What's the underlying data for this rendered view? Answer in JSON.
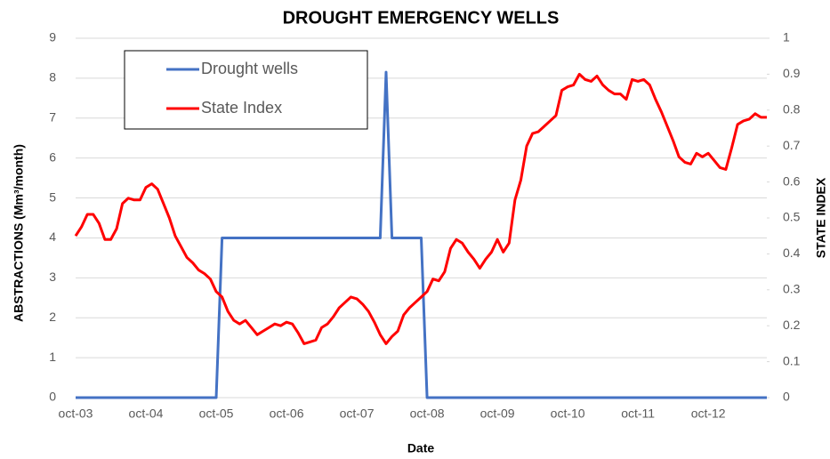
{
  "chart_data": {
    "type": "line",
    "title": "DROUGHT EMERGENCY WELLS",
    "xlabel": "Date",
    "ylabel": "ABSTRACTIONS (Mm³/month)",
    "y2label": "STATE INDEX",
    "categories": [
      "oct-03",
      null,
      null,
      null,
      null,
      null,
      null,
      null,
      null,
      null,
      null,
      null,
      "oct-04",
      null,
      null,
      null,
      null,
      null,
      null,
      null,
      null,
      null,
      null,
      null,
      "oct-05",
      null,
      null,
      null,
      null,
      null,
      null,
      null,
      null,
      null,
      null,
      null,
      "oct-06",
      null,
      null,
      null,
      null,
      null,
      null,
      null,
      null,
      null,
      null,
      null,
      "oct-07",
      null,
      null,
      null,
      null,
      null,
      null,
      null,
      null,
      null,
      null,
      null,
      "oct-08",
      null,
      null,
      null,
      null,
      null,
      null,
      null,
      null,
      null,
      null,
      null,
      "oct-09",
      null,
      null,
      null,
      null,
      null,
      null,
      null,
      null,
      null,
      null,
      null,
      "oct-10",
      null,
      null,
      null,
      null,
      null,
      null,
      null,
      null,
      null,
      null,
      null,
      "oct-11",
      null,
      null,
      null,
      null,
      null,
      null,
      null,
      null,
      null,
      null,
      null,
      "oct-12",
      null,
      null,
      null,
      null,
      null,
      null,
      null,
      null,
      null,
      null
    ],
    "series": [
      {
        "name": "Drought wells",
        "color": "#4472c4",
        "values": [
          0,
          0,
          0,
          0,
          0,
          0,
          0,
          0,
          0,
          0,
          0,
          0,
          0,
          0,
          0,
          0,
          0,
          0,
          0,
          0,
          0,
          0,
          0,
          0,
          0,
          4,
          4,
          4,
          4,
          4,
          4,
          4,
          4,
          4,
          4,
          4,
          4,
          4,
          4,
          4,
          4,
          4,
          4,
          4,
          4,
          4,
          4,
          4,
          4,
          4,
          4,
          4,
          4,
          8.15,
          4,
          4,
          4,
          4,
          4,
          4,
          0,
          0,
          0,
          0,
          0,
          0,
          0,
          0,
          0,
          0,
          0,
          0,
          0,
          0,
          0,
          0,
          0,
          0,
          0,
          0,
          0,
          0,
          0,
          0,
          0,
          0,
          0,
          0,
          0,
          0,
          0,
          0,
          0,
          0,
          0,
          0,
          0,
          0,
          0,
          0,
          0,
          0,
          0,
          0,
          0,
          0,
          0,
          0,
          0,
          0,
          0,
          0,
          0,
          0,
          0,
          0,
          0,
          0,
          0
        ]
      },
      {
        "name": "State Index",
        "color": "#ff0000",
        "axis": "y2",
        "values": [
          0.45,
          0.475,
          0.51,
          0.51,
          0.485,
          0.44,
          0.44,
          0.47,
          0.54,
          0.555,
          0.55,
          0.55,
          0.585,
          0.595,
          0.58,
          0.54,
          0.5,
          0.45,
          0.42,
          0.39,
          0.375,
          0.355,
          0.345,
          0.33,
          0.295,
          0.28,
          0.24,
          0.215,
          0.205,
          0.215,
          0.195,
          0.175,
          0.185,
          0.195,
          0.205,
          0.2,
          0.21,
          0.205,
          0.18,
          0.15,
          0.155,
          0.16,
          0.195,
          0.205,
          0.225,
          0.25,
          0.265,
          0.28,
          0.275,
          0.26,
          0.24,
          0.21,
          0.175,
          0.15,
          0.17,
          0.185,
          0.23,
          0.25,
          0.265,
          0.28,
          0.295,
          0.33,
          0.325,
          0.35,
          0.415,
          0.44,
          0.43,
          0.405,
          0.385,
          0.36,
          0.385,
          0.405,
          0.44,
          0.405,
          0.43,
          0.55,
          0.605,
          0.7,
          0.735,
          0.74,
          0.755,
          0.77,
          0.785,
          0.855,
          0.865,
          0.87,
          0.9,
          0.885,
          0.88,
          0.895,
          0.87,
          0.855,
          0.845,
          0.845,
          0.83,
          0.885,
          0.88,
          0.885,
          0.87,
          0.83,
          0.795,
          0.755,
          0.715,
          0.67,
          0.655,
          0.65,
          0.68,
          0.67,
          0.68,
          0.66,
          0.64,
          0.635,
          0.695,
          0.76,
          0.77,
          0.775,
          0.79,
          0.78,
          0.78
        ]
      }
    ],
    "ylim": [
      0,
      9
    ],
    "yticks": [
      0,
      1,
      2,
      3,
      4,
      5,
      6,
      7,
      8,
      9
    ],
    "y2lim": [
      0,
      1
    ],
    "y2ticks": [
      0,
      0.1,
      0.2,
      0.3,
      0.4,
      0.5,
      0.6,
      0.7,
      0.8,
      0.9,
      1
    ],
    "grid": true,
    "legend": "upper left"
  }
}
